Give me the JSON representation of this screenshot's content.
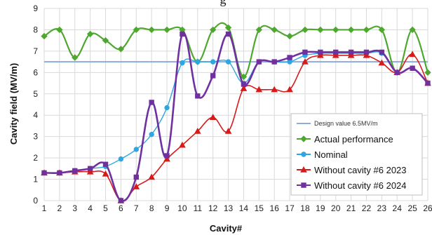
{
  "chart_data": {
    "type": "line",
    "title": "g",
    "xlabel": "Cavity#",
    "ylabel": "Cavity field (MV/m)",
    "xlim": [
      1,
      26
    ],
    "ylim": [
      0,
      9
    ],
    "x": [
      1,
      2,
      3,
      4,
      5,
      6,
      7,
      8,
      9,
      10,
      11,
      12,
      13,
      14,
      15,
      16,
      17,
      18,
      19,
      20,
      21,
      22,
      23,
      24,
      25,
      26
    ],
    "x_ticks": [
      "1",
      "2",
      "3",
      "4",
      "5",
      "6",
      "7",
      "8",
      "9",
      "10",
      "11",
      "12",
      "13",
      "14",
      "15",
      "16",
      "17",
      "18",
      "19",
      "20",
      "21",
      "22",
      "23",
      "24",
      "25",
      "26"
    ],
    "y_ticks": [
      "0",
      "1",
      "2",
      "3",
      "4",
      "5",
      "6",
      "7",
      "8",
      "9"
    ],
    "grid": true,
    "legend_position": "bottom-right",
    "reference_line": {
      "name": "Design value 6.5MV/m",
      "value": 6.5,
      "color": "#8faadc"
    },
    "series": [
      {
        "name": "Actual performance",
        "color": "#4ea72e",
        "marker": "diamond",
        "values": [
          7.7,
          8.0,
          6.7,
          7.8,
          7.5,
          7.1,
          8.0,
          8.0,
          8.0,
          8.0,
          6.5,
          8.0,
          8.1,
          5.8,
          8.0,
          8.0,
          7.7,
          8.0,
          8.0,
          8.0,
          8.0,
          8.0,
          8.0,
          6.0,
          8.0,
          6.0
        ]
      },
      {
        "name": "Nominal",
        "color": "#2ea6e0",
        "marker": "circle",
        "values": [
          1.3,
          1.3,
          1.4,
          1.5,
          1.6,
          1.95,
          2.4,
          3.1,
          4.35,
          6.45,
          6.5,
          6.5,
          6.5,
          5.5,
          6.5,
          6.5,
          6.5,
          6.8,
          6.9,
          6.9,
          6.9,
          6.9,
          6.9,
          6.0,
          6.2,
          5.5
        ]
      },
      {
        "name": "Without cavity #6 2023",
        "color": "#d71a1a",
        "marker": "triangle",
        "values": [
          1.3,
          1.3,
          1.35,
          1.35,
          1.25,
          0.0,
          0.65,
          1.1,
          1.95,
          2.6,
          3.25,
          3.9,
          3.25,
          5.25,
          5.2,
          5.2,
          5.2,
          6.5,
          6.8,
          6.8,
          6.8,
          6.8,
          6.45,
          6.0,
          6.85,
          5.5
        ]
      },
      {
        "name": "Without cavity #6 2024",
        "color": "#7030a0",
        "marker": "square",
        "values": [
          1.3,
          1.3,
          1.4,
          1.5,
          1.7,
          0.0,
          1.1,
          4.6,
          2.1,
          7.8,
          4.9,
          5.85,
          7.8,
          5.45,
          6.5,
          6.5,
          6.7,
          6.95,
          6.95,
          6.95,
          6.95,
          6.95,
          6.95,
          6.0,
          6.2,
          5.5
        ]
      }
    ]
  }
}
